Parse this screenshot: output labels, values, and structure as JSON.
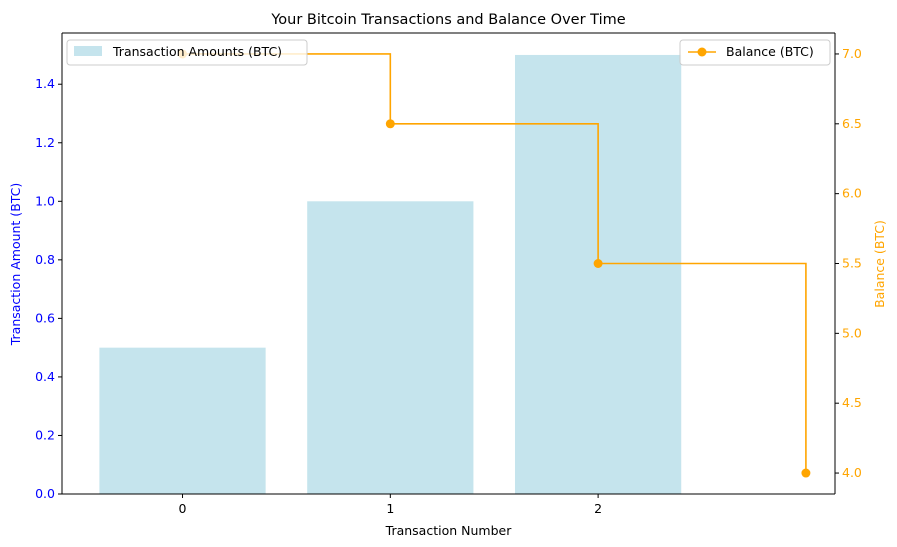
{
  "chart_data": {
    "type": "bar",
    "title": "Your Bitcoin Transactions and Balance Over Time",
    "xlabel": "Transaction Number",
    "x_categories": [
      "0",
      "1",
      "2"
    ],
    "x_positions": [
      0,
      1,
      2,
      3
    ],
    "xlim": [
      -0.58,
      3.14
    ],
    "left_axis": {
      "label": "Transaction Amount (BTC)",
      "color": "#0000ff",
      "ylim": [
        0,
        1.575
      ],
      "ticks": [
        0.0,
        0.2,
        0.4,
        0.6,
        0.8,
        1.0,
        1.2,
        1.4
      ],
      "tick_labels": [
        "0.0",
        "0.2",
        "0.4",
        "0.6",
        "0.8",
        "1.0",
        "1.2",
        "1.4"
      ]
    },
    "right_axis": {
      "label": "Balance (BTC)",
      "color": "#ffa500",
      "ylim": [
        3.85,
        7.15
      ],
      "ticks": [
        4.0,
        4.5,
        5.0,
        5.5,
        6.0,
        6.5,
        7.0
      ],
      "tick_labels": [
        "4.0",
        "4.5",
        "5.0",
        "5.5",
        "6.0",
        "6.5",
        "7.0"
      ]
    },
    "bar_series": {
      "name": "Transaction Amounts (BTC)",
      "color": "#add8e6",
      "opacity": 0.7,
      "bar_width": 0.8,
      "x": [
        0,
        1,
        2
      ],
      "values": [
        0.5,
        1.0,
        1.5
      ]
    },
    "line_series": {
      "name": "Balance (BTC)",
      "color": "#ffa500",
      "drawstyle": "steps-post",
      "marker": "circle",
      "x": [
        0,
        1,
        2,
        3
      ],
      "values": [
        7.0,
        6.5,
        5.5,
        4.0
      ]
    },
    "legends": {
      "bars": "upper left",
      "line": "upper right"
    },
    "grid": false
  }
}
